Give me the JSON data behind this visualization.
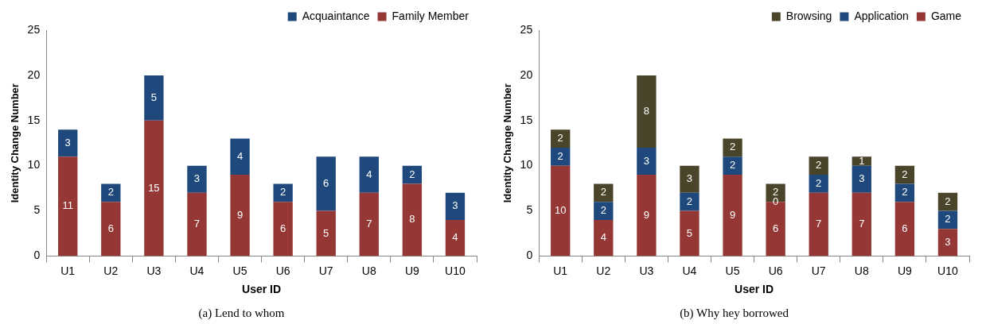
{
  "chart_data": [
    {
      "type": "bar",
      "title": "(a) Lend to whom",
      "xlabel": "User ID",
      "ylabel": "Identity Change Number",
      "categories": [
        "U1",
        "U2",
        "U3",
        "U4",
        "U5",
        "U6",
        "U7",
        "U8",
        "U9",
        "U10"
      ],
      "stacked": true,
      "ylim": [
        0,
        25
      ],
      "yticks": [
        0,
        5,
        10,
        15,
        20,
        25
      ],
      "grid": false,
      "legend": "top right",
      "data_labels": true,
      "series": [
        {
          "name": "Family Member",
          "color": "#953735",
          "values": [
            11,
            6,
            15,
            7,
            9,
            6,
            5,
            7,
            8,
            4
          ]
        },
        {
          "name": "Acquaintance",
          "color": "#1f497d",
          "values": [
            3,
            2,
            5,
            3,
            4,
            2,
            6,
            4,
            2,
            3
          ]
        }
      ]
    },
    {
      "type": "bar",
      "title": "(b) Why hey borrowed",
      "xlabel": "User ID",
      "ylabel": "Identity Change Number",
      "categories": [
        "U1",
        "U2",
        "U3",
        "U4",
        "U5",
        "U6",
        "U7",
        "U8",
        "U9",
        "U10"
      ],
      "stacked": true,
      "ylim": [
        0,
        25
      ],
      "yticks": [
        0,
        5,
        10,
        15,
        20,
        25
      ],
      "grid": false,
      "legend": "top right",
      "data_labels": true,
      "series": [
        {
          "name": "Game",
          "color": "#953735",
          "values": [
            10,
            4,
            9,
            5,
            9,
            6,
            7,
            7,
            6,
            3
          ]
        },
        {
          "name": "Application",
          "color": "#1f497d",
          "values": [
            2,
            2,
            3,
            2,
            2,
            0,
            2,
            3,
            2,
            2
          ]
        },
        {
          "name": "Browsing",
          "color": "#4a452a",
          "values": [
            2,
            2,
            8,
            3,
            2,
            2,
            2,
            1,
            2,
            2
          ]
        }
      ]
    }
  ]
}
